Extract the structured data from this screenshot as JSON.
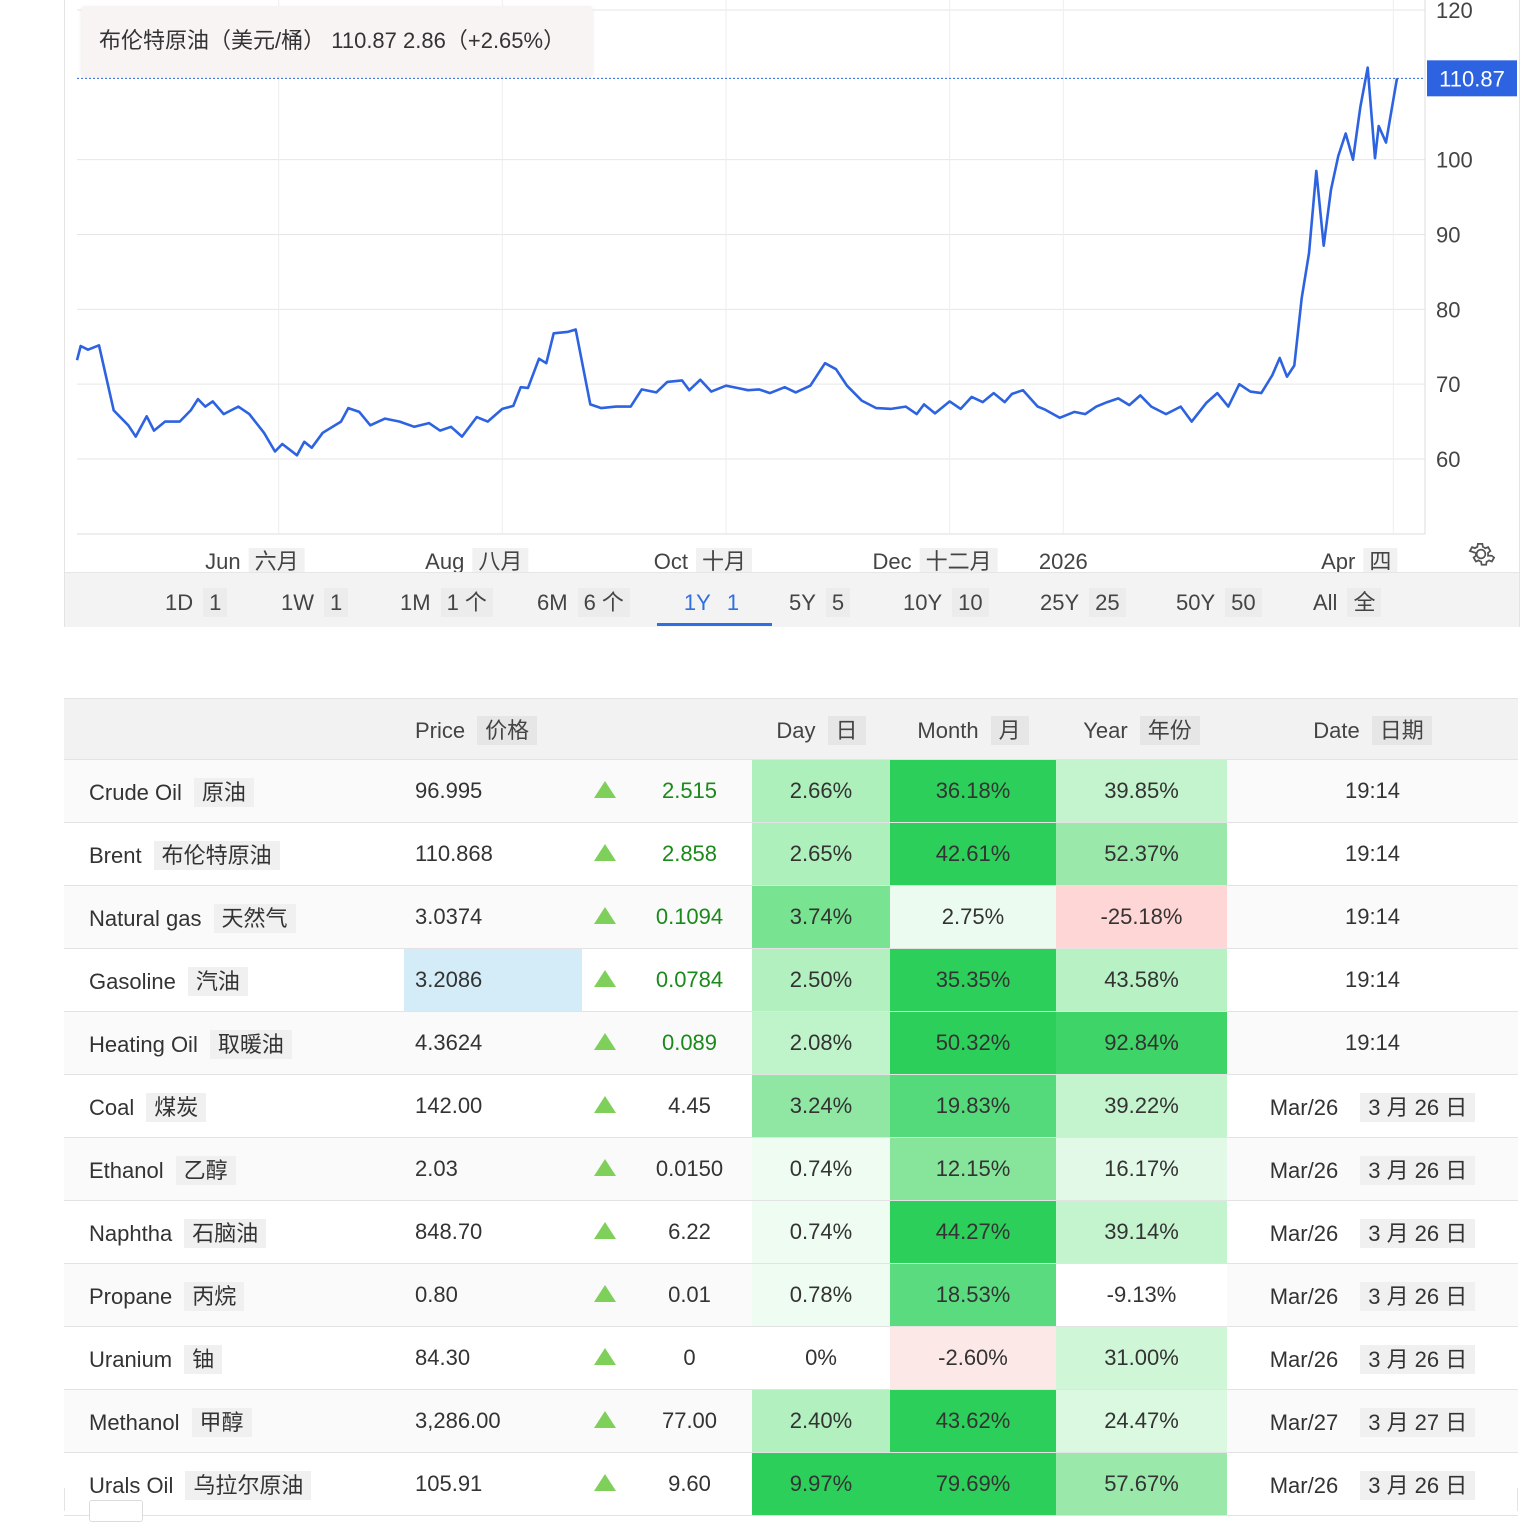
{
  "tooltip": {
    "name": "布伦特原油（美元/桶）",
    "price": "110.87",
    "change": "2.86",
    "pct": "（+2.65%）"
  },
  "chart_data": {
    "type": "line",
    "title": "",
    "xlabel": "",
    "ylabel": "",
    "x_start": "2025-04-07",
    "x_end": "2026-04-02",
    "ylim": [
      50,
      120
    ],
    "y_ticks": [
      60,
      70,
      80,
      90,
      100,
      120
    ],
    "x_ticks": [
      {
        "date": "2025-06-01",
        "label": "Jun",
        "label_zh": "六月"
      },
      {
        "date": "2025-08-01",
        "label": "Aug",
        "label_zh": "八月"
      },
      {
        "date": "2025-10-01",
        "label": "Oct",
        "label_zh": "十月"
      },
      {
        "date": "2025-12-01",
        "label": "Dec",
        "label_zh": "十二月"
      },
      {
        "date": "2026-01-01",
        "label": "2026",
        "label_zh": ""
      },
      {
        "date": "2026-04-01",
        "label": "Apr",
        "label_zh": "四"
      }
    ],
    "last_value": 110.87,
    "last_value_label": "110.87",
    "line_color": "#2d63e0",
    "grid": true,
    "series": [
      {
        "values": [
          [
            "2025-04-07",
            73.2
          ],
          [
            "2025-04-08",
            75.1
          ],
          [
            "2025-04-10",
            74.6
          ],
          [
            "2025-04-13",
            75.2
          ],
          [
            "2025-04-17",
            66.5
          ],
          [
            "2025-04-21",
            64.5
          ],
          [
            "2025-04-23",
            63.0
          ],
          [
            "2025-04-26",
            65.7
          ],
          [
            "2025-04-28",
            63.8
          ],
          [
            "2025-05-01",
            65.0
          ],
          [
            "2025-05-05",
            65.0
          ],
          [
            "2025-05-08",
            66.5
          ],
          [
            "2025-05-10",
            68.0
          ],
          [
            "2025-05-12",
            67.0
          ],
          [
            "2025-05-14",
            67.7
          ],
          [
            "2025-05-17",
            66.0
          ],
          [
            "2025-05-21",
            67.0
          ],
          [
            "2025-05-24",
            66.0
          ],
          [
            "2025-05-28",
            63.5
          ],
          [
            "2025-05-31",
            61.0
          ],
          [
            "2025-06-02",
            62.0
          ],
          [
            "2025-06-06",
            60.5
          ],
          [
            "2025-06-08",
            62.3
          ],
          [
            "2025-06-10",
            61.5
          ],
          [
            "2025-06-13",
            63.5
          ],
          [
            "2025-06-18",
            65.0
          ],
          [
            "2025-06-20",
            66.8
          ],
          [
            "2025-06-23",
            66.3
          ],
          [
            "2025-06-26",
            64.5
          ],
          [
            "2025-06-30",
            65.4
          ],
          [
            "2025-07-04",
            65.0
          ],
          [
            "2025-07-08",
            64.3
          ],
          [
            "2025-07-12",
            64.8
          ],
          [
            "2025-07-15",
            63.8
          ],
          [
            "2025-07-18",
            64.3
          ],
          [
            "2025-07-21",
            63.0
          ],
          [
            "2025-07-25",
            65.6
          ],
          [
            "2025-07-28",
            65.0
          ],
          [
            "2025-08-01",
            66.7
          ],
          [
            "2025-08-04",
            67.1
          ],
          [
            "2025-08-06",
            69.6
          ],
          [
            "2025-08-08",
            69.5
          ],
          [
            "2025-08-11",
            73.4
          ],
          [
            "2025-08-13",
            72.8
          ],
          [
            "2025-08-15",
            76.8
          ],
          [
            "2025-08-19",
            77.0
          ],
          [
            "2025-08-21",
            77.3
          ],
          [
            "2025-08-25",
            67.3
          ],
          [
            "2025-08-28",
            66.8
          ],
          [
            "2025-09-01",
            67.0
          ],
          [
            "2025-09-05",
            67.0
          ],
          [
            "2025-09-08",
            69.3
          ],
          [
            "2025-09-12",
            68.9
          ],
          [
            "2025-09-15",
            70.3
          ],
          [
            "2025-09-19",
            70.5
          ],
          [
            "2025-09-21",
            69.2
          ],
          [
            "2025-09-24",
            70.6
          ],
          [
            "2025-09-27",
            69.0
          ],
          [
            "2025-10-01",
            69.8
          ],
          [
            "2025-10-04",
            69.5
          ],
          [
            "2025-10-07",
            69.2
          ],
          [
            "2025-10-10",
            69.3
          ],
          [
            "2025-10-13",
            68.8
          ],
          [
            "2025-10-17",
            69.6
          ],
          [
            "2025-10-20",
            68.9
          ],
          [
            "2025-10-24",
            69.8
          ],
          [
            "2025-10-28",
            72.8
          ],
          [
            "2025-10-31",
            72.0
          ],
          [
            "2025-11-03",
            69.8
          ],
          [
            "2025-11-07",
            67.8
          ],
          [
            "2025-11-11",
            66.8
          ],
          [
            "2025-11-15",
            66.7
          ],
          [
            "2025-11-19",
            67.0
          ],
          [
            "2025-11-22",
            66.0
          ],
          [
            "2025-11-24",
            67.3
          ],
          [
            "2025-11-27",
            66.1
          ],
          [
            "2025-12-01",
            67.7
          ],
          [
            "2025-12-04",
            66.7
          ],
          [
            "2025-12-07",
            68.3
          ],
          [
            "2025-12-10",
            67.6
          ],
          [
            "2025-12-13",
            68.8
          ],
          [
            "2025-12-16",
            67.6
          ],
          [
            "2025-12-18",
            68.7
          ],
          [
            "2025-12-21",
            69.2
          ],
          [
            "2025-12-25",
            67.0
          ],
          [
            "2025-12-27",
            66.6
          ],
          [
            "2025-12-31",
            65.5
          ],
          [
            "2026-01-04",
            66.3
          ],
          [
            "2026-01-07",
            66.0
          ],
          [
            "2026-01-10",
            67.0
          ],
          [
            "2026-01-13",
            67.6
          ],
          [
            "2026-01-16",
            68.1
          ],
          [
            "2026-01-19",
            67.2
          ],
          [
            "2026-01-22",
            68.5
          ],
          [
            "2026-01-25",
            67.0
          ],
          [
            "2026-01-29",
            66.0
          ]
        ]
      }
    ]
  },
  "ranges": [
    {
      "en": "1D",
      "zh": "1"
    },
    {
      "en": "1W",
      "zh": "1"
    },
    {
      "en": "1M",
      "zh": "1 个"
    },
    {
      "en": "6M",
      "zh": "6 个"
    },
    {
      "en": "1Y",
      "zh": "1",
      "active": true
    },
    {
      "en": "5Y",
      "zh": "5"
    },
    {
      "en": "10Y",
      "zh": "10"
    },
    {
      "en": "25Y",
      "zh": "25"
    },
    {
      "en": "50Y",
      "zh": "50"
    },
    {
      "en": "All",
      "zh": "全"
    }
  ],
  "table": {
    "headers": {
      "price": {
        "en": "Price",
        "zh": "价格"
      },
      "day": {
        "en": "Day",
        "zh": "日"
      },
      "month": {
        "en": "Month",
        "zh": "月"
      },
      "year": {
        "en": "Year",
        "zh": "年份"
      },
      "date": {
        "en": "Date",
        "zh": "日期"
      }
    },
    "rows": [
      {
        "en": "Crude Oil",
        "zh": "原油",
        "price": "96.995",
        "change": "2.515",
        "change_color": "#1a8a1a",
        "day": "2.66%",
        "day_bg": "#aef0bc",
        "month": "36.18%",
        "month_bg": "#2dcf5b",
        "year": "39.85%",
        "year_bg": "#c4f4cd",
        "date": "19:14",
        "date_zh": ""
      },
      {
        "en": "Brent",
        "zh": "布伦特原油",
        "price": "110.868",
        "change": "2.858",
        "change_color": "#1a8a1a",
        "day": "2.65%",
        "day_bg": "#aef0bc",
        "month": "42.61%",
        "month_bg": "#2dcf5b",
        "year": "52.37%",
        "year_bg": "#9ae9ab",
        "date": "19:14",
        "date_zh": ""
      },
      {
        "en": "Natural gas",
        "zh": "天然气",
        "price": "3.0374",
        "change": "0.1094",
        "change_color": "#1a8a1a",
        "day": "3.74%",
        "day_bg": "#78e390",
        "month": "2.75%",
        "month_bg": "#ecfbef",
        "year": "-25.18%",
        "year_bg": "#ffd6d6",
        "date": "19:14",
        "date_zh": ""
      },
      {
        "en": "Gasoline",
        "zh": "汽油",
        "price": "3.2086",
        "price_bg": "#d4ecf8",
        "change": "0.0784",
        "change_color": "#1a8a1a",
        "day": "2.50%",
        "day_bg": "#b3f0c0",
        "month": "35.35%",
        "month_bg": "#2dcf5b",
        "year": "43.58%",
        "year_bg": "#b8f1c4",
        "date": "19:14",
        "date_zh": ""
      },
      {
        "en": "Heating Oil",
        "zh": "取暖油",
        "price": "4.3624",
        "change": "0.089",
        "change_color": "#1a8a1a",
        "day": "2.08%",
        "day_bg": "#bff3ca",
        "month": "50.32%",
        "month_bg": "#2dcf5b",
        "year": "92.84%",
        "year_bg": "#3fd467",
        "date": "19:14",
        "date_zh": ""
      },
      {
        "en": "Coal",
        "zh": "煤炭",
        "price": "142.00",
        "change": "4.45",
        "change_color": "#333333",
        "day": "3.24%",
        "day_bg": "#8fe7a3",
        "month": "19.83%",
        "month_bg": "#55da7b",
        "year": "39.22%",
        "year_bg": "#c4f4cd",
        "date": "Mar/26",
        "date_zh": "3 月 26 日"
      },
      {
        "en": "Ethanol",
        "zh": "乙醇",
        "price": "2.03",
        "change": "0.0150",
        "change_color": "#333333",
        "day": "0.74%",
        "day_bg": "#eefcf1",
        "month": "12.15%",
        "month_bg": "#86e59b",
        "year": "16.17%",
        "year_bg": "#e2f9e7",
        "date": "Mar/26",
        "date_zh": "3 月 26 日"
      },
      {
        "en": "Naphtha",
        "zh": "石脑油",
        "price": "848.70",
        "change": "6.22",
        "change_color": "#333333",
        "day": "0.74%",
        "day_bg": "#eefcf1",
        "month": "44.27%",
        "month_bg": "#2dcf5b",
        "year": "39.14%",
        "year_bg": "#c4f4cd",
        "date": "Mar/26",
        "date_zh": "3 月 26 日"
      },
      {
        "en": "Propane",
        "zh": "丙烷",
        "price": "0.80",
        "change": "0.01",
        "change_color": "#333333",
        "day": "0.78%",
        "day_bg": "#eefcf1",
        "month": "18.53%",
        "month_bg": "#5bdb7f",
        "year": "-9.13%",
        "year_bg": "#ffffff",
        "date": "Mar/26",
        "date_zh": "3 月 26 日"
      },
      {
        "en": "Uranium",
        "zh": "铀",
        "price": "84.30",
        "change": "0",
        "change_color": "#333333",
        "day": "0%",
        "day_bg": "#ffffff",
        "month": "-2.60%",
        "month_bg": "#fde8e8",
        "year": "31.00%",
        "year_bg": "#d0f6d8",
        "date": "Mar/26",
        "date_zh": "3 月 26 日"
      },
      {
        "en": "Methanol",
        "zh": "甲醇",
        "price": "3,286.00",
        "change": "77.00",
        "change_color": "#333333",
        "day": "2.40%",
        "day_bg": "#b3f0c0",
        "month": "43.62%",
        "month_bg": "#2dcf5b",
        "year": "24.47%",
        "year_bg": "#dbf8e1",
        "date": "Mar/27",
        "date_zh": "3 月 27 日"
      },
      {
        "en": "Urals Oil",
        "zh": "乌拉尔原油",
        "price": "105.91",
        "change": "9.60",
        "change_color": "#333333",
        "day": "9.97%",
        "day_bg": "#2dcf5b",
        "month": "79.69%",
        "month_bg": "#2dcf5b",
        "year": "57.67%",
        "year_bg": "#9ae9ab",
        "date": "Mar/26",
        "date_zh": "3 月 26 日"
      }
    ]
  }
}
